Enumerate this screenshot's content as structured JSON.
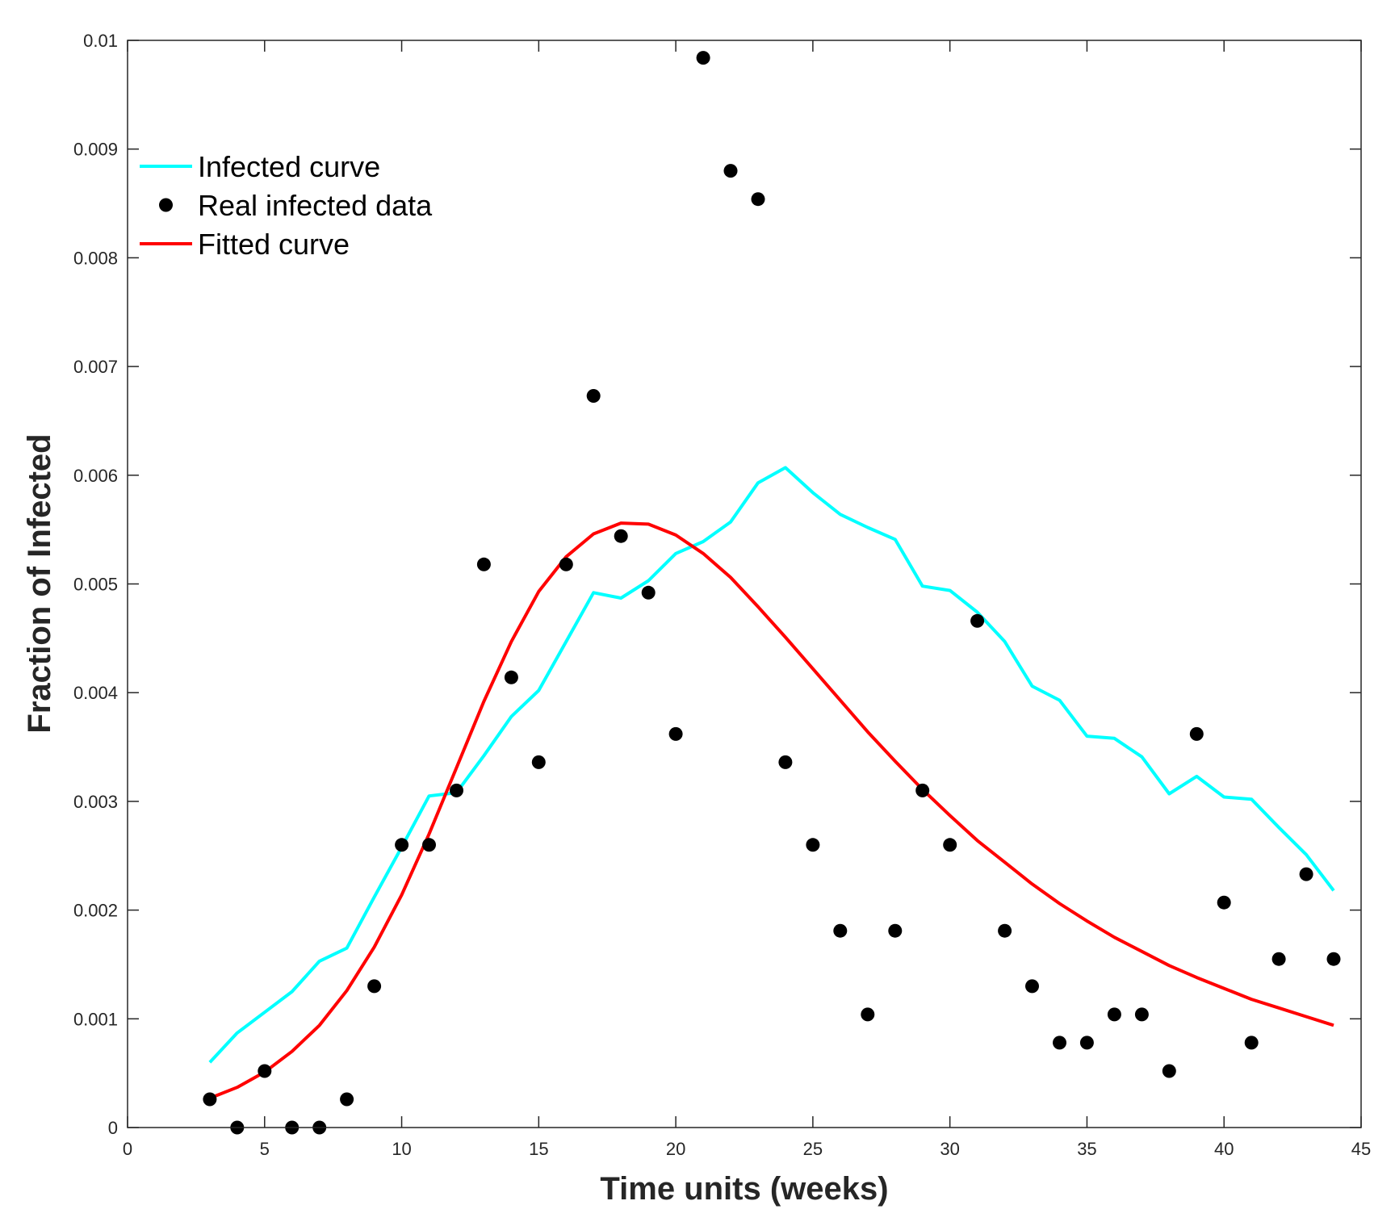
{
  "chart_data": {
    "type": "line",
    "title": "",
    "xlabel": "Time units (weeks)",
    "ylabel": "Fraction of Infected",
    "xlim": [
      0,
      45
    ],
    "ylim": [
      0,
      0.01
    ],
    "grid": false,
    "legend_position": "top-left",
    "xticks": [
      0,
      5,
      10,
      15,
      20,
      25,
      30,
      35,
      40,
      45
    ],
    "xtick_labels": [
      "0",
      "5",
      "10",
      "15",
      "20",
      "25",
      "30",
      "35",
      "40",
      "45"
    ],
    "yticks": [
      0,
      0.001,
      0.002,
      0.003,
      0.004,
      0.005,
      0.006,
      0.007,
      0.008,
      0.009,
      0.01
    ],
    "ytick_labels": [
      "0",
      "0.001",
      "0.002",
      "0.003",
      "0.004",
      "0.005",
      "0.006",
      "0.007",
      "0.008",
      "0.009",
      "0.01"
    ],
    "series": [
      {
        "name": "Infected curve",
        "kind": "line",
        "color": "#00FFFF",
        "x": [
          3,
          4,
          5,
          6,
          7,
          8,
          9,
          10,
          11,
          12,
          13,
          14,
          15,
          16,
          17,
          18,
          19,
          20,
          21,
          22,
          23,
          24,
          25,
          26,
          27,
          28,
          29,
          30,
          31,
          32,
          33,
          34,
          35,
          36,
          37,
          38,
          39,
          40,
          41,
          42,
          43,
          44
        ],
        "y": [
          0.0006,
          0.00087,
          0.00106,
          0.00125,
          0.00153,
          0.00165,
          0.00212,
          0.00258,
          0.00305,
          0.00308,
          0.00342,
          0.00378,
          0.00402,
          0.00447,
          0.00492,
          0.00487,
          0.00503,
          0.00528,
          0.00539,
          0.00557,
          0.00593,
          0.00607,
          0.00584,
          0.00564,
          0.00552,
          0.00541,
          0.00498,
          0.00494,
          0.00474,
          0.00447,
          0.00406,
          0.00393,
          0.0036,
          0.00358,
          0.00341,
          0.00307,
          0.00323,
          0.00304,
          0.00302,
          0.00276,
          0.00251,
          0.00218
        ]
      },
      {
        "name": "Real infected data",
        "kind": "scatter",
        "color": "#000000",
        "x": [
          3,
          4,
          5,
          6,
          7,
          8,
          9,
          10,
          11,
          12,
          13,
          14,
          15,
          16,
          17,
          18,
          19,
          20,
          21,
          22,
          23,
          24,
          25,
          26,
          27,
          28,
          29,
          30,
          31,
          32,
          33,
          34,
          35,
          36,
          37,
          38,
          39,
          40,
          41,
          42,
          43,
          44
        ],
        "y": [
          0.00026,
          0.0,
          0.00052,
          0.0,
          0.0,
          0.00026,
          0.0013,
          0.0026,
          0.0026,
          0.0031,
          0.00518,
          0.00414,
          0.00336,
          0.00518,
          0.00673,
          0.00544,
          0.00492,
          0.00362,
          0.00984,
          0.0088,
          0.00854,
          0.00336,
          0.0026,
          0.00181,
          0.00104,
          0.00181,
          0.0031,
          0.0026,
          0.00466,
          0.00181,
          0.0013,
          0.00078,
          0.00078,
          0.00104,
          0.00104,
          0.00052,
          0.00362,
          0.00207,
          0.00078,
          0.00155,
          0.00233,
          0.00155
        ]
      },
      {
        "name": "Fitted curve",
        "kind": "line",
        "color": "#FF0000",
        "x": [
          3,
          4,
          5,
          6,
          7,
          8,
          9,
          10,
          11,
          12,
          13,
          14,
          15,
          16,
          17,
          18,
          19,
          20,
          21,
          22,
          23,
          24,
          25,
          26,
          27,
          28,
          29,
          30,
          31,
          32,
          33,
          34,
          35,
          36,
          37,
          38,
          39,
          40,
          41,
          42,
          43,
          44
        ],
        "y": [
          0.00027,
          0.00037,
          0.00051,
          0.0007,
          0.00094,
          0.00126,
          0.00166,
          0.00214,
          0.0027,
          0.00331,
          0.00392,
          0.00447,
          0.00493,
          0.00525,
          0.00546,
          0.00556,
          0.00555,
          0.00545,
          0.00528,
          0.00506,
          0.00479,
          0.00451,
          0.00422,
          0.00393,
          0.00364,
          0.00337,
          0.00311,
          0.00287,
          0.00264,
          0.00244,
          0.00224,
          0.00206,
          0.0019,
          0.00175,
          0.00162,
          0.00149,
          0.00138,
          0.00128,
          0.00118,
          0.0011,
          0.00102,
          0.00094
        ]
      }
    ]
  }
}
